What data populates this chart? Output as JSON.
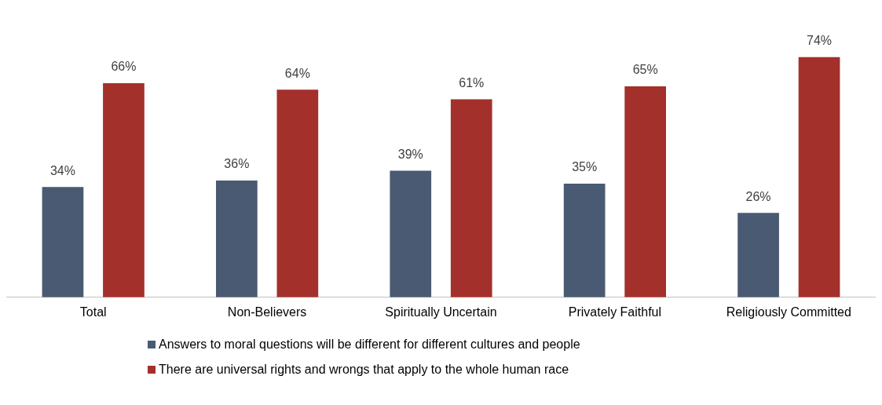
{
  "chart_data": {
    "type": "bar",
    "categories": [
      "Total",
      "Non-Believers",
      "Spiritually Uncertain",
      "Privately Faithful",
      "Religiously Committed"
    ],
    "series": [
      {
        "name": "Answers to moral questions will be different for different cultures and people",
        "color": "#4a5a72",
        "values": [
          34,
          36,
          39,
          35,
          26
        ],
        "value_labels": [
          "34%",
          "36%",
          "39%",
          "35%",
          "26%"
        ]
      },
      {
        "name": "There are universal rights and wrongs that apply to the whole human race",
        "color": "#a4302b",
        "values": [
          66,
          64,
          61,
          65,
          74
        ],
        "value_labels": [
          "66%",
          "64%",
          "61%",
          "65%",
          "74%"
        ]
      }
    ],
    "grid": false,
    "legend": "bottom",
    "tick_labels": "x"
  }
}
